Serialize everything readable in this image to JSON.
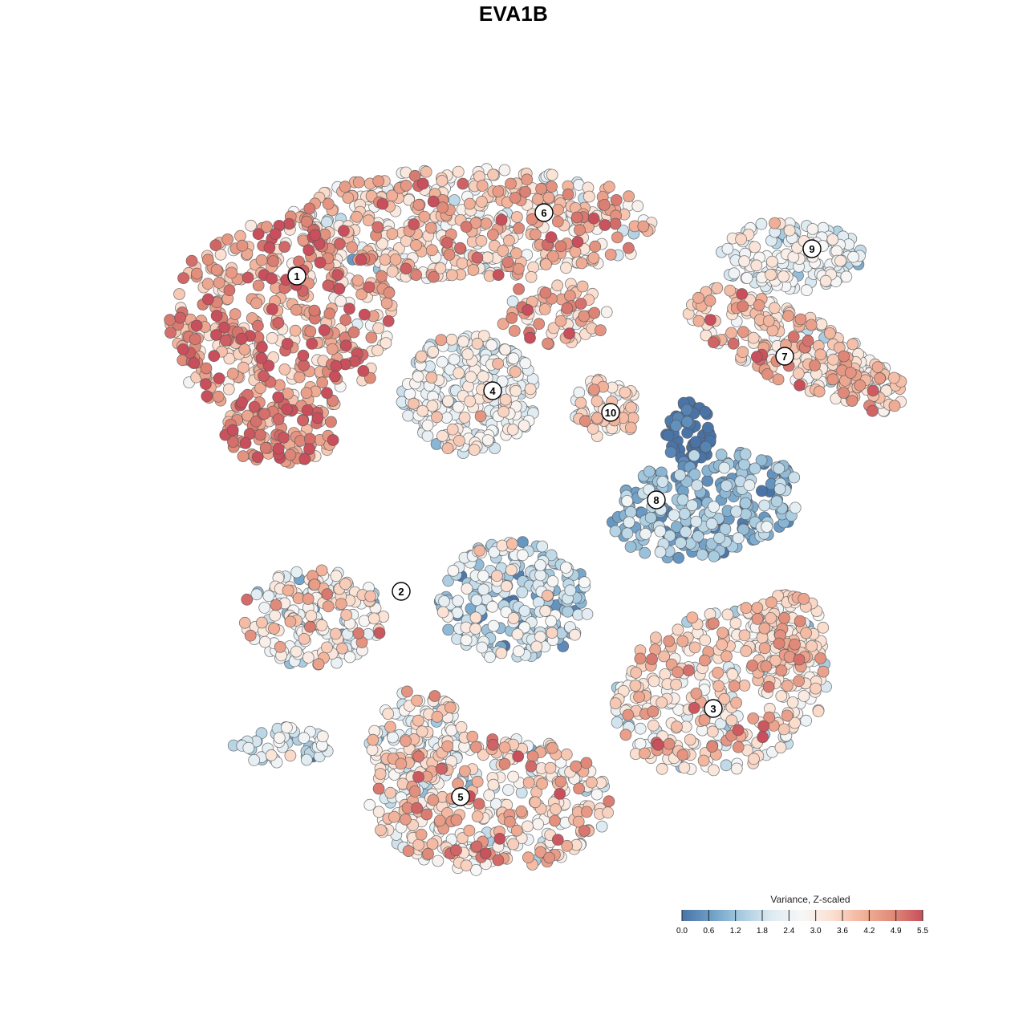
{
  "chart_data": {
    "type": "scatter",
    "title": "EVA1B",
    "colorbar": {
      "title": "Variance, Z-scaled",
      "ticks": [
        "0.0",
        "0.6",
        "1.2",
        "1.8",
        "2.4",
        "3.0",
        "3.6",
        "4.2",
        "4.9",
        "5.5"
      ],
      "range": [
        0.0,
        5.5
      ],
      "colors": [
        "#4a74a8",
        "#6fa0c8",
        "#a9cce0",
        "#deebf2",
        "#f7f7f7",
        "#fbe0d1",
        "#f2b29a",
        "#e08b79",
        "#c84f5b"
      ]
    },
    "clusters": [
      {
        "label": "1",
        "mean_value": 4.3
      },
      {
        "label": "2",
        "mean_value": 2.8
      },
      {
        "label": "3",
        "mean_value": 3.3
      },
      {
        "label": "4",
        "mean_value": 2.5
      },
      {
        "label": "5",
        "mean_value": 3.3
      },
      {
        "label": "6",
        "mean_value": 3.6
      },
      {
        "label": "7",
        "mean_value": 3.5
      },
      {
        "label": "8",
        "mean_value": 1.0
      },
      {
        "label": "9",
        "mean_value": 2.4
      },
      {
        "label": "10",
        "mean_value": 3.4
      }
    ],
    "grid": false,
    "axes_visible": false,
    "legend_position": "bottom-right"
  }
}
